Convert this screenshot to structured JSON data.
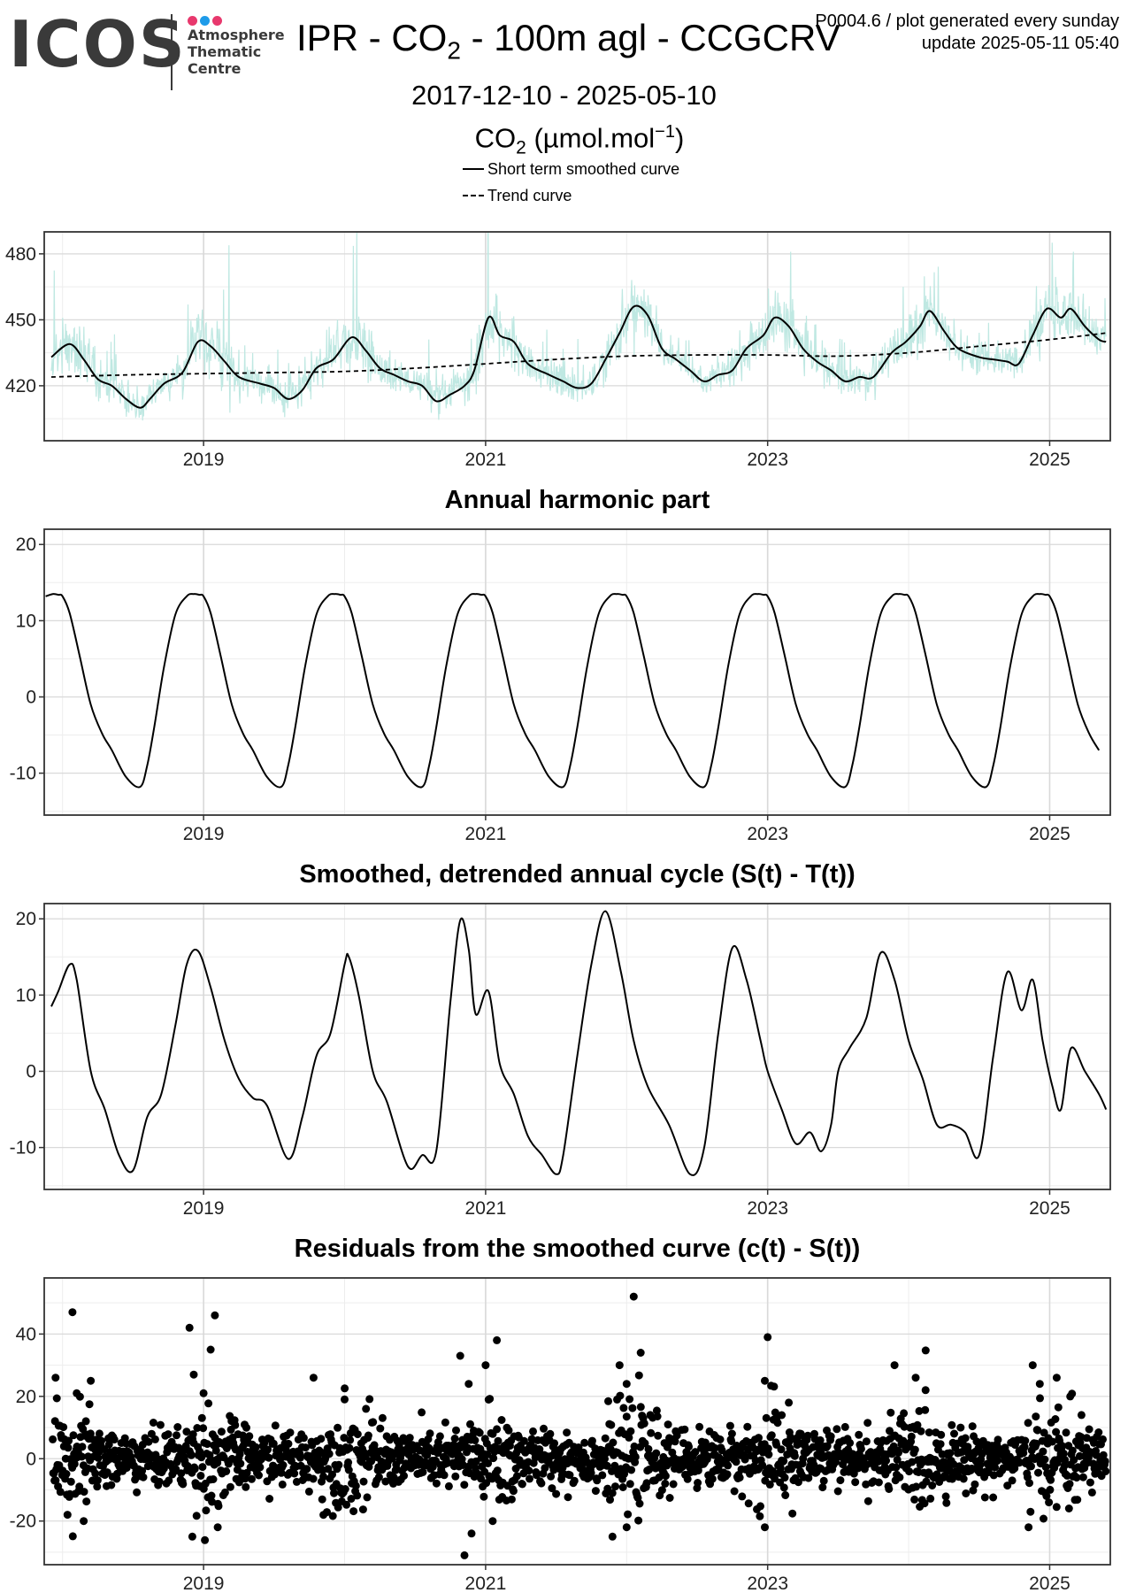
{
  "logo": {
    "wordmark": "ICOS",
    "subtitle_lines": [
      "Atmosphere",
      "Thematic",
      "Centre"
    ],
    "dot_colors": [
      "#e8386d",
      "#1e9be9",
      "#e8386d"
    ]
  },
  "header": {
    "title_prefix": "IPR - CO",
    "title_sub": "2",
    "title_suffix": " - 100m agl - CCGCRV",
    "meta_line1": "P0004.6 / plot generated every sunday",
    "meta_line2": "update  2025-05-11 05:40",
    "date_range": "2017-12-10 - 2025-05-10",
    "species_prefix": "CO",
    "species_sub": "2",
    "species_unit_open": " (µmol.mol",
    "species_sup": "−1",
    "species_unit_close": ")"
  },
  "legend": [
    {
      "label": "Short term smoothed curve",
      "style": "solid"
    },
    {
      "label": "Trend curve",
      "style": "dashed"
    }
  ],
  "colors": {
    "raw_series": "#bfe8e2",
    "lines": "#000000",
    "grid_major": "#d9d9d9",
    "grid_minor": "#ededed",
    "panel_border": "#333333"
  },
  "chart_data": [
    {
      "id": "concentration",
      "type": "line",
      "title": "",
      "xlabel": "",
      "ylabel": "",
      "xlim": [
        2017.87,
        2025.43
      ],
      "ylim": [
        395,
        490
      ],
      "yticks": [
        420,
        450,
        480
      ],
      "xticks": [
        2019,
        2021,
        2023,
        2025
      ],
      "grid": true,
      "series": [
        {
          "name": "Short term smoothed curve",
          "style": "solid",
          "x": [
            2017.92,
            2018.05,
            2018.15,
            2018.25,
            2018.35,
            2018.45,
            2018.55,
            2018.62,
            2018.72,
            2018.85,
            2018.96,
            2019.05,
            2019.15,
            2019.25,
            2019.4,
            2019.5,
            2019.6,
            2019.7,
            2019.8,
            2019.92,
            2020.05,
            2020.15,
            2020.25,
            2020.35,
            2020.45,
            2020.55,
            2020.65,
            2020.75,
            2020.85,
            2020.92,
            2021.02,
            2021.1,
            2021.2,
            2021.3,
            2021.45,
            2021.55,
            2021.65,
            2021.75,
            2021.85,
            2021.95,
            2022.05,
            2022.15,
            2022.25,
            2022.35,
            2022.45,
            2022.55,
            2022.65,
            2022.75,
            2022.85,
            2022.97,
            2023.05,
            2023.15,
            2023.25,
            2023.35,
            2023.45,
            2023.55,
            2023.65,
            2023.75,
            2023.88,
            2023.98,
            2024.08,
            2024.15,
            2024.25,
            2024.35,
            2024.5,
            2024.6,
            2024.7,
            2024.78,
            2024.88,
            2024.98,
            2025.08,
            2025.15,
            2025.25,
            2025.35,
            2025.4
          ],
          "y": [
            433,
            439,
            432,
            423,
            420,
            414,
            410,
            414,
            421,
            426,
            440,
            438,
            431,
            424,
            421,
            419,
            414,
            418,
            428,
            432,
            442,
            436,
            428,
            425,
            422,
            420,
            413,
            416,
            420,
            427,
            451,
            443,
            440,
            430,
            425,
            422,
            419,
            421,
            432,
            444,
            456,
            452,
            437,
            432,
            427,
            422,
            425,
            427,
            437,
            443,
            451,
            447,
            437,
            431,
            427,
            422,
            424,
            424,
            435,
            440,
            447,
            454,
            445,
            437,
            433,
            432,
            431,
            430,
            443,
            455,
            451,
            455,
            447,
            441,
            440
          ]
        },
        {
          "name": "Trend curve",
          "style": "dashed",
          "x": [
            2017.92,
            2018.5,
            2019.0,
            2019.5,
            2020.0,
            2020.5,
            2021.0,
            2021.5,
            2022.0,
            2022.5,
            2023.0,
            2023.5,
            2024.0,
            2024.5,
            2025.0,
            2025.4
          ],
          "y": [
            424,
            425,
            425.5,
            426,
            426.5,
            428,
            430,
            432,
            433.5,
            434,
            434,
            433.5,
            435,
            438,
            441,
            444
          ]
        }
      ]
    },
    {
      "id": "harmonic",
      "type": "line",
      "title": "Annual harmonic part",
      "xlabel": "",
      "ylabel": "",
      "xlim": [
        2017.87,
        2025.43
      ],
      "ylim": [
        -15.5,
        22
      ],
      "yticks": [
        -10,
        0,
        10,
        20
      ],
      "xticks": [
        2019,
        2021,
        2023,
        2025
      ],
      "grid": true,
      "series": [
        {
          "name": "",
          "style": "solid",
          "x": [
            0.0,
            0.05,
            0.12,
            0.2,
            0.28,
            0.35,
            0.45,
            0.55,
            0.6,
            0.65,
            0.72,
            0.8,
            0.88,
            0.93,
            0.97
          ],
          "y": [
            13.2,
            11.0,
            5.5,
            -1.0,
            -4.8,
            -7.0,
            -10.5,
            -11.8,
            -9.0,
            -4.0,
            4.0,
            10.8,
            13.2,
            13.5,
            13.4
          ]
        }
      ]
    },
    {
      "id": "detrended",
      "type": "line",
      "title": "Smoothed, detrended annual cycle (S(t) - T(t))",
      "xlabel": "",
      "ylabel": "",
      "xlim": [
        2017.87,
        2025.43
      ],
      "ylim": [
        -15.5,
        22
      ],
      "yticks": [
        -10,
        0,
        10,
        20
      ],
      "xticks": [
        2019,
        2021,
        2023,
        2025
      ],
      "grid": true,
      "series": [
        {
          "name": "",
          "style": "solid",
          "x": [
            2017.92,
            2017.97,
            2018.05,
            2018.1,
            2018.2,
            2018.3,
            2018.4,
            2018.5,
            2018.6,
            2018.7,
            2018.8,
            2018.88,
            2018.96,
            2019.05,
            2019.15,
            2019.25,
            2019.35,
            2019.45,
            2019.6,
            2019.7,
            2019.8,
            2019.9,
            2020.0,
            2020.03,
            2020.1,
            2020.2,
            2020.3,
            2020.45,
            2020.55,
            2020.65,
            2020.75,
            2020.82,
            2020.88,
            2020.93,
            2021.02,
            2021.1,
            2021.2,
            2021.3,
            2021.4,
            2021.5,
            2021.55,
            2021.65,
            2021.75,
            2021.85,
            2021.96,
            2022.05,
            2022.15,
            2022.3,
            2022.45,
            2022.55,
            2022.65,
            2022.75,
            2022.85,
            2022.95,
            2023.0,
            2023.1,
            2023.2,
            2023.3,
            2023.38,
            2023.45,
            2023.5,
            2023.58,
            2023.7,
            2023.8,
            2023.9,
            2024.0,
            2024.1,
            2024.2,
            2024.3,
            2024.4,
            2024.5,
            2024.6,
            2024.7,
            2024.8,
            2024.88,
            2024.95,
            2025.02,
            2025.08,
            2025.15,
            2025.25,
            2025.35,
            2025.4
          ],
          "y": [
            8.5,
            10.5,
            14.0,
            12.0,
            0.0,
            -5.0,
            -11.0,
            -13.0,
            -6.0,
            -3.0,
            6.0,
            14.0,
            15.8,
            11.0,
            4.0,
            -1.0,
            -3.5,
            -4.5,
            -11.5,
            -6.0,
            2.0,
            5.0,
            14.0,
            15.0,
            10.0,
            0.0,
            -4.0,
            -12.5,
            -11.0,
            -10.5,
            9.0,
            19.8,
            16.0,
            7.5,
            10.5,
            1.0,
            -3.0,
            -8.5,
            -11.0,
            -13.5,
            -11.0,
            2.0,
            14.0,
            21.0,
            13.0,
            4.0,
            -2.0,
            -7.0,
            -13.5,
            -10.0,
            5.0,
            16.2,
            12.0,
            4.0,
            0.0,
            -5.0,
            -9.5,
            -8.0,
            -10.5,
            -7.0,
            0.0,
            3.0,
            7.0,
            15.5,
            12.0,
            4.0,
            -1.0,
            -7.0,
            -7.0,
            -8.0,
            -11.0,
            2.0,
            13.0,
            8.0,
            12.0,
            4.0,
            -2.0,
            -5.0,
            3.0,
            0.0,
            -3.0,
            -5.0
          ]
        }
      ]
    },
    {
      "id": "residuals",
      "type": "scatter",
      "title": "Residuals from the smoothed curve (c(t) - S(t))",
      "xlabel": "",
      "ylabel": "",
      "xlim": [
        2017.87,
        2025.43
      ],
      "ylim": [
        -34,
        58
      ],
      "yticks": [
        -20,
        0,
        20,
        40
      ],
      "xticks": [
        2019,
        2021,
        2023,
        2025
      ],
      "grid": true,
      "outliers": {
        "x": [
          2018.07,
          2018.2,
          2017.95,
          2018.1,
          2018.9,
          2019.08,
          2019.05,
          2018.93,
          2019.0,
          2019.78,
          2020.0,
          2020.82,
          2020.88,
          2021.08,
          2021.0,
          2022.05,
          2022.1,
          2021.95,
          2022.0,
          2023.0,
          2022.98,
          2023.15,
          2023.1,
          2023.9,
          2024.05,
          2024.12,
          2024.88,
          2024.93,
          2025.05,
          2020.85,
          2020.9,
          2021.05,
          2021.9,
          2022.0,
          2018.92,
          2019.1,
          2022.98,
          2024.85,
          2018.15,
          2019.85
        ],
        "y": [
          47,
          25,
          26,
          21,
          42,
          46,
          35,
          27,
          21,
          26,
          19,
          33,
          24,
          38,
          30,
          52,
          34,
          30,
          24,
          39,
          25,
          18,
          14,
          30,
          26,
          22,
          30,
          24,
          26,
          -31,
          -24,
          -20,
          -25,
          -22,
          -25,
          -22,
          -22,
          -22,
          -20,
          -18
        ]
      }
    }
  ]
}
